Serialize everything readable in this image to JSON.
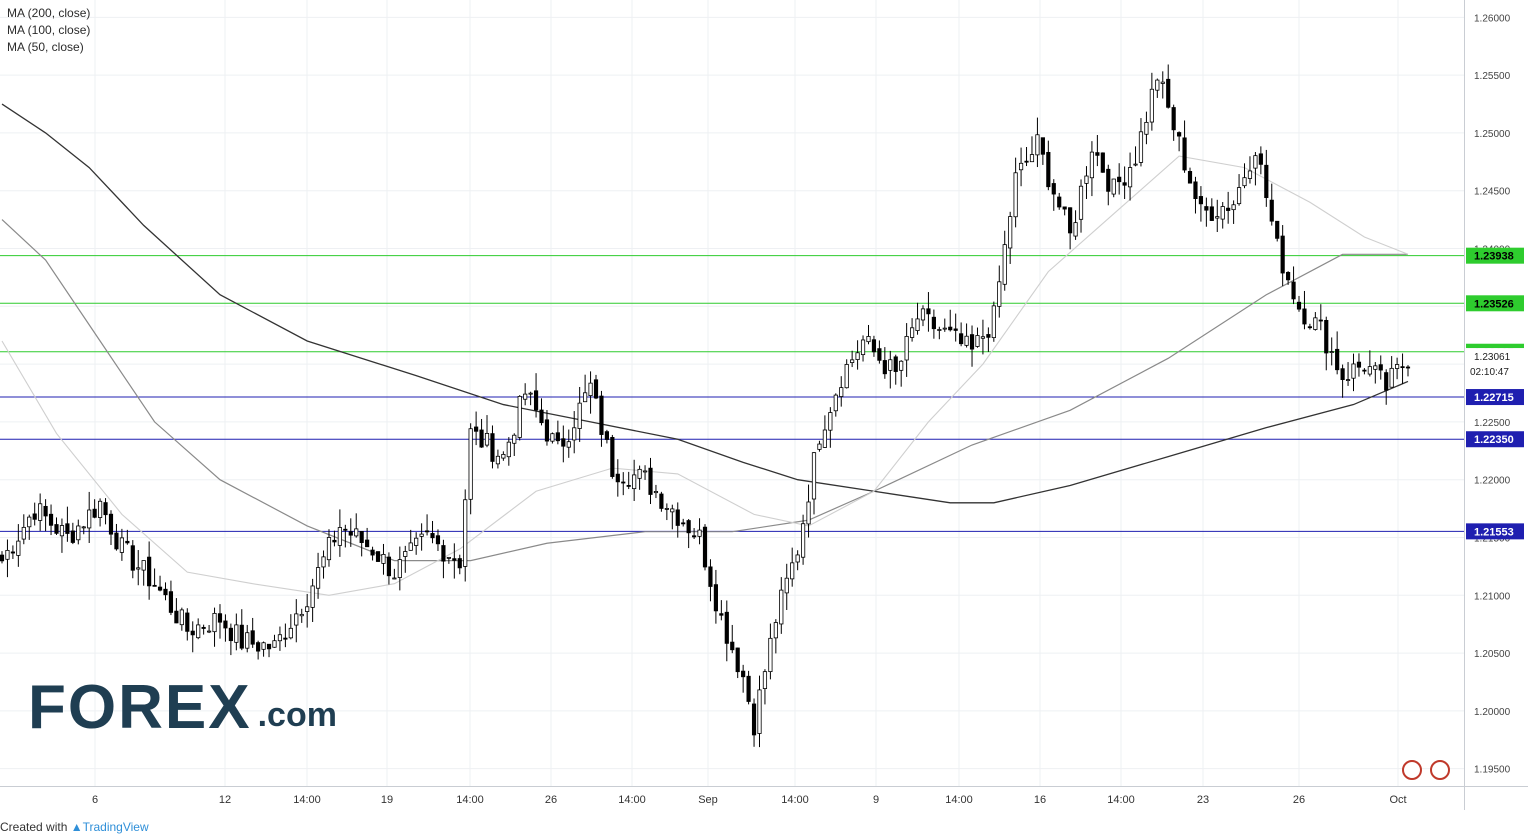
{
  "legend": {
    "items": [
      "MA (200, close)",
      "MA (100, close)",
      "MA (50, close)"
    ]
  },
  "logo": {
    "main": "FOREX",
    "suffix": ".com"
  },
  "credit": {
    "prefix": "Created with",
    "brand": "TradingView"
  },
  "colors": {
    "up": "#ffffff",
    "down": "#000000",
    "wick": "#000000",
    "ma200": "#333333",
    "ma100": "#8a8a8a",
    "ma50": "#cfcfcf",
    "green_level": "#2ecc2e",
    "blue_level": "#1f1fb0",
    "grid": "#eef0f3"
  },
  "chart_data": {
    "type": "candlestick",
    "instrument": "GBP/USD",
    "timeframe": "4h",
    "y_axis_ticks": [
      "1.19500",
      "1.20000",
      "1.20500",
      "1.21000",
      "1.21500",
      "1.22000",
      "1.22500",
      "1.23000",
      "1.23500",
      "1.24000",
      "1.24500",
      "1.25000",
      "1.25500",
      "1.26000"
    ],
    "ylim": [
      1.1935,
      1.2615
    ],
    "x_axis_ticks": [
      "6",
      "12",
      "14:00",
      "19",
      "14:00",
      "26",
      "14:00",
      "Sep",
      "14:00",
      "9",
      "14:00",
      "16",
      "14:00",
      "23",
      "26",
      "Oct"
    ],
    "levels": [
      {
        "value": 1.23938,
        "label": "1.23938",
        "color": "green"
      },
      {
        "value": 1.23526,
        "label": "1.23526",
        "color": "green"
      },
      {
        "value": 1.23107,
        "label": "1.23107",
        "color": "green"
      },
      {
        "value": 1.22715,
        "label": "1.22715",
        "color": "blue"
      },
      {
        "value": 1.2235,
        "label": "1.22350",
        "color": "blue"
      },
      {
        "value": 1.21553,
        "label": "1.21553",
        "color": "blue"
      }
    ],
    "last_price": {
      "value": "1.23061",
      "countdown": "02:10:47"
    },
    "key_points": [
      {
        "t": 0,
        "p": 1.213
      },
      {
        "t": 6,
        "p": 1.2175
      },
      {
        "t": 12,
        "p": 1.215
      },
      {
        "t": 18,
        "p": 1.218
      },
      {
        "t": 22,
        "p": 1.214
      },
      {
        "t": 28,
        "p": 1.211
      },
      {
        "t": 34,
        "p": 1.207
      },
      {
        "t": 40,
        "p": 1.208
      },
      {
        "t": 44,
        "p": 1.206
      },
      {
        "t": 50,
        "p": 1.2055
      },
      {
        "t": 56,
        "p": 1.21
      },
      {
        "t": 62,
        "p": 1.216
      },
      {
        "t": 68,
        "p": 1.214
      },
      {
        "t": 72,
        "p": 1.212
      },
      {
        "t": 78,
        "p": 1.215
      },
      {
        "t": 84,
        "p": 1.213
      },
      {
        "t": 86,
        "p": 1.224
      },
      {
        "t": 92,
        "p": 1.222
      },
      {
        "t": 96,
        "p": 1.2275
      },
      {
        "t": 102,
        "p": 1.2225
      },
      {
        "t": 108,
        "p": 1.228
      },
      {
        "t": 112,
        "p": 1.221
      },
      {
        "t": 118,
        "p": 1.22
      },
      {
        "t": 124,
        "p": 1.217
      },
      {
        "t": 128,
        "p": 1.215
      },
      {
        "t": 132,
        "p": 1.208
      },
      {
        "t": 136,
        "p": 1.203
      },
      {
        "t": 138,
        "p": 1.199
      },
      {
        "t": 142,
        "p": 1.208
      },
      {
        "t": 146,
        "p": 1.214
      },
      {
        "t": 150,
        "p": 1.224
      },
      {
        "t": 154,
        "p": 1.229
      },
      {
        "t": 158,
        "p": 1.232
      },
      {
        "t": 164,
        "p": 1.229
      },
      {
        "t": 168,
        "p": 1.234
      },
      {
        "t": 172,
        "p": 1.233
      },
      {
        "t": 178,
        "p": 1.231
      },
      {
        "t": 182,
        "p": 1.234
      },
      {
        "t": 186,
        "p": 1.246
      },
      {
        "t": 190,
        "p": 1.249
      },
      {
        "t": 196,
        "p": 1.241
      },
      {
        "t": 200,
        "p": 1.249
      },
      {
        "t": 204,
        "p": 1.245
      },
      {
        "t": 208,
        "p": 1.248
      },
      {
        "t": 212,
        "p": 1.255
      },
      {
        "t": 216,
        "p": 1.249
      },
      {
        "t": 220,
        "p": 1.243
      },
      {
        "t": 226,
        "p": 1.244
      },
      {
        "t": 230,
        "p": 1.249
      },
      {
        "t": 234,
        "p": 1.24
      },
      {
        "t": 238,
        "p": 1.235
      },
      {
        "t": 242,
        "p": 1.233
      },
      {
        "t": 246,
        "p": 1.229
      },
      {
        "t": 250,
        "p": 1.23
      },
      {
        "t": 254,
        "p": 1.228
      },
      {
        "t": 258,
        "p": 1.2306
      }
    ],
    "ma200": [
      [
        0,
        1.2525
      ],
      [
        8,
        1.25
      ],
      [
        16,
        1.247
      ],
      [
        26,
        1.242
      ],
      [
        40,
        1.236
      ],
      [
        56,
        1.232
      ],
      [
        76,
        1.229
      ],
      [
        92,
        1.2265
      ],
      [
        108,
        1.225
      ],
      [
        124,
        1.2235
      ],
      [
        136,
        1.2215
      ],
      [
        146,
        1.22
      ],
      [
        160,
        1.219
      ],
      [
        174,
        1.218
      ],
      [
        182,
        1.218
      ],
      [
        196,
        1.2195
      ],
      [
        214,
        1.222
      ],
      [
        232,
        1.2245
      ],
      [
        248,
        1.2265
      ],
      [
        258,
        1.2285
      ]
    ],
    "ma100": [
      [
        0,
        1.2425
      ],
      [
        8,
        1.239
      ],
      [
        18,
        1.232
      ],
      [
        28,
        1.225
      ],
      [
        40,
        1.22
      ],
      [
        56,
        1.216
      ],
      [
        72,
        1.213
      ],
      [
        86,
        1.213
      ],
      [
        100,
        1.2145
      ],
      [
        118,
        1.2155
      ],
      [
        134,
        1.2155
      ],
      [
        148,
        1.2165
      ],
      [
        160,
        1.219
      ],
      [
        178,
        1.223
      ],
      [
        196,
        1.226
      ],
      [
        214,
        1.2305
      ],
      [
        232,
        1.236
      ],
      [
        246,
        1.2395
      ],
      [
        258,
        1.2395
      ]
    ],
    "ma50": [
      [
        0,
        1.232
      ],
      [
        10,
        1.224
      ],
      [
        22,
        1.217
      ],
      [
        34,
        1.212
      ],
      [
        46,
        1.211
      ],
      [
        60,
        1.21
      ],
      [
        72,
        1.211
      ],
      [
        84,
        1.214
      ],
      [
        98,
        1.219
      ],
      [
        112,
        1.221
      ],
      [
        124,
        1.2205
      ],
      [
        138,
        1.217
      ],
      [
        148,
        1.216
      ],
      [
        160,
        1.219
      ],
      [
        170,
        1.225
      ],
      [
        180,
        1.23
      ],
      [
        192,
        1.238
      ],
      [
        204,
        1.243
      ],
      [
        216,
        1.248
      ],
      [
        228,
        1.247
      ],
      [
        240,
        1.244
      ],
      [
        250,
        1.241
      ],
      [
        258,
        1.2395
      ]
    ]
  }
}
